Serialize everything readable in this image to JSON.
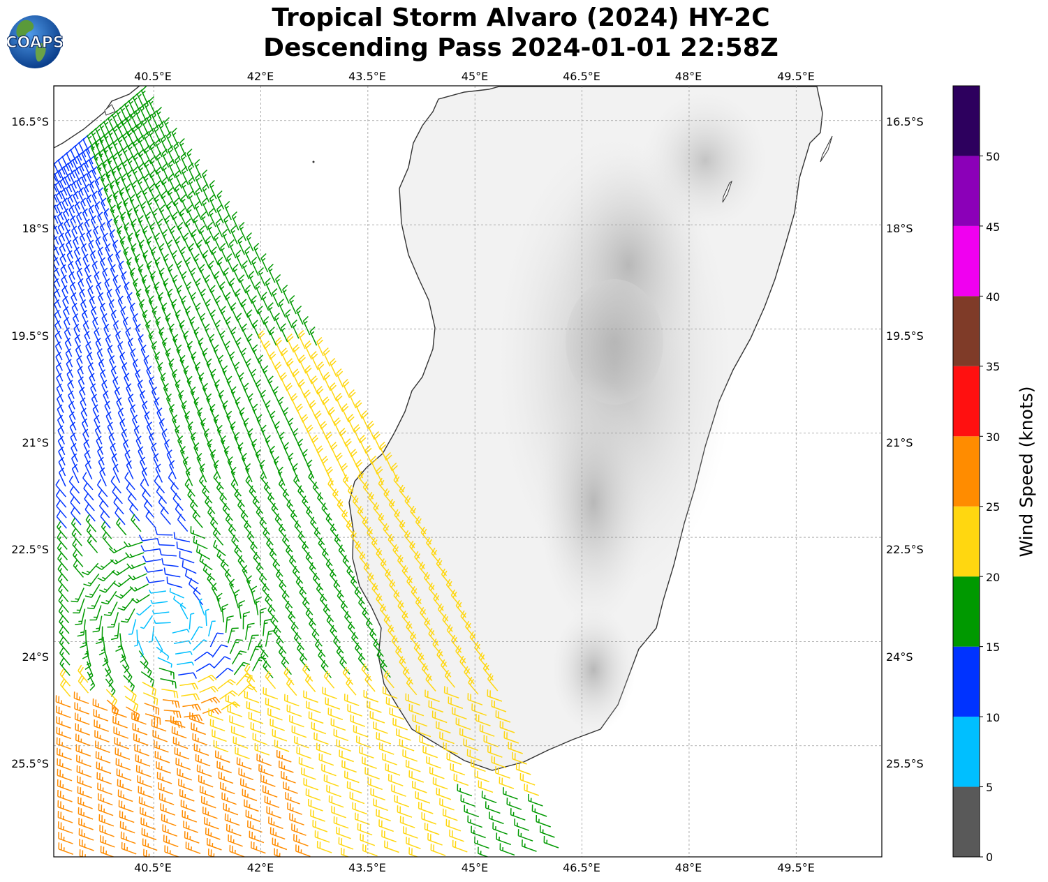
{
  "title_line1": "Tropical Storm Alvaro (2024) HY-2C",
  "title_line2": "Descending Pass 2024-01-01 22:58Z",
  "logo_text": "COAPS",
  "map": {
    "lon_range": [
      39.1,
      50.7
    ],
    "lat_range": [
      -27.1,
      -16.0
    ],
    "lon_ticks": [
      "40.5°E",
      "42°E",
      "43.5°E",
      "45°E",
      "46.5°E",
      "48°E",
      "49.5°E"
    ],
    "lat_ticks": [
      "16.5°S",
      "18°S",
      "19.5°S",
      "21°S",
      "22.5°S",
      "24°S",
      "25.5°S"
    ],
    "gridlines": true,
    "land_label_free": true
  },
  "colorbar": {
    "label": "Wind Speed (knots)",
    "tick_labels": [
      "0",
      "5",
      "10",
      "15",
      "20",
      "25",
      "30",
      "35",
      "40",
      "45",
      "50"
    ],
    "bins": [
      {
        "min": 0,
        "max": 5,
        "color": "#595959"
      },
      {
        "min": 5,
        "max": 10,
        "color": "#00bfff"
      },
      {
        "min": 10,
        "max": 15,
        "color": "#0033ff"
      },
      {
        "min": 15,
        "max": 20,
        "color": "#009900"
      },
      {
        "min": 20,
        "max": 25,
        "color": "#ffd710"
      },
      {
        "min": 25,
        "max": 30,
        "color": "#ff8c00"
      },
      {
        "min": 30,
        "max": 35,
        "color": "#ff1010"
      },
      {
        "min": 35,
        "max": 40,
        "color": "#7f3b28"
      },
      {
        "min": 40,
        "max": 45,
        "color": "#f000f0"
      },
      {
        "min": 45,
        "max": 50,
        "color": "#8b00b8"
      },
      {
        "min": 50,
        "max": 55,
        "color": "#2d005e"
      }
    ]
  },
  "chart_data": {
    "type": "scatter",
    "description_units": "wind barbs; speed in knots",
    "swath_regions": [
      {
        "zone": "north-west swath",
        "speed_range_kt": [
          10,
          15
        ],
        "color": "#0033ff"
      },
      {
        "zone": "central swath",
        "speed_range_kt": [
          15,
          20
        ],
        "color": "#009900"
      },
      {
        "zone": "storm center near 41.2°E 23.7°S",
        "speed_range_kt": [
          5,
          10
        ],
        "color": "#00bfff"
      },
      {
        "zone": "east edge / south",
        "speed_range_kt": [
          20,
          25
        ],
        "color": "#ffd710"
      },
      {
        "zone": "south-west",
        "speed_range_kt": [
          25,
          30
        ],
        "color": "#ff8c00"
      }
    ]
  }
}
